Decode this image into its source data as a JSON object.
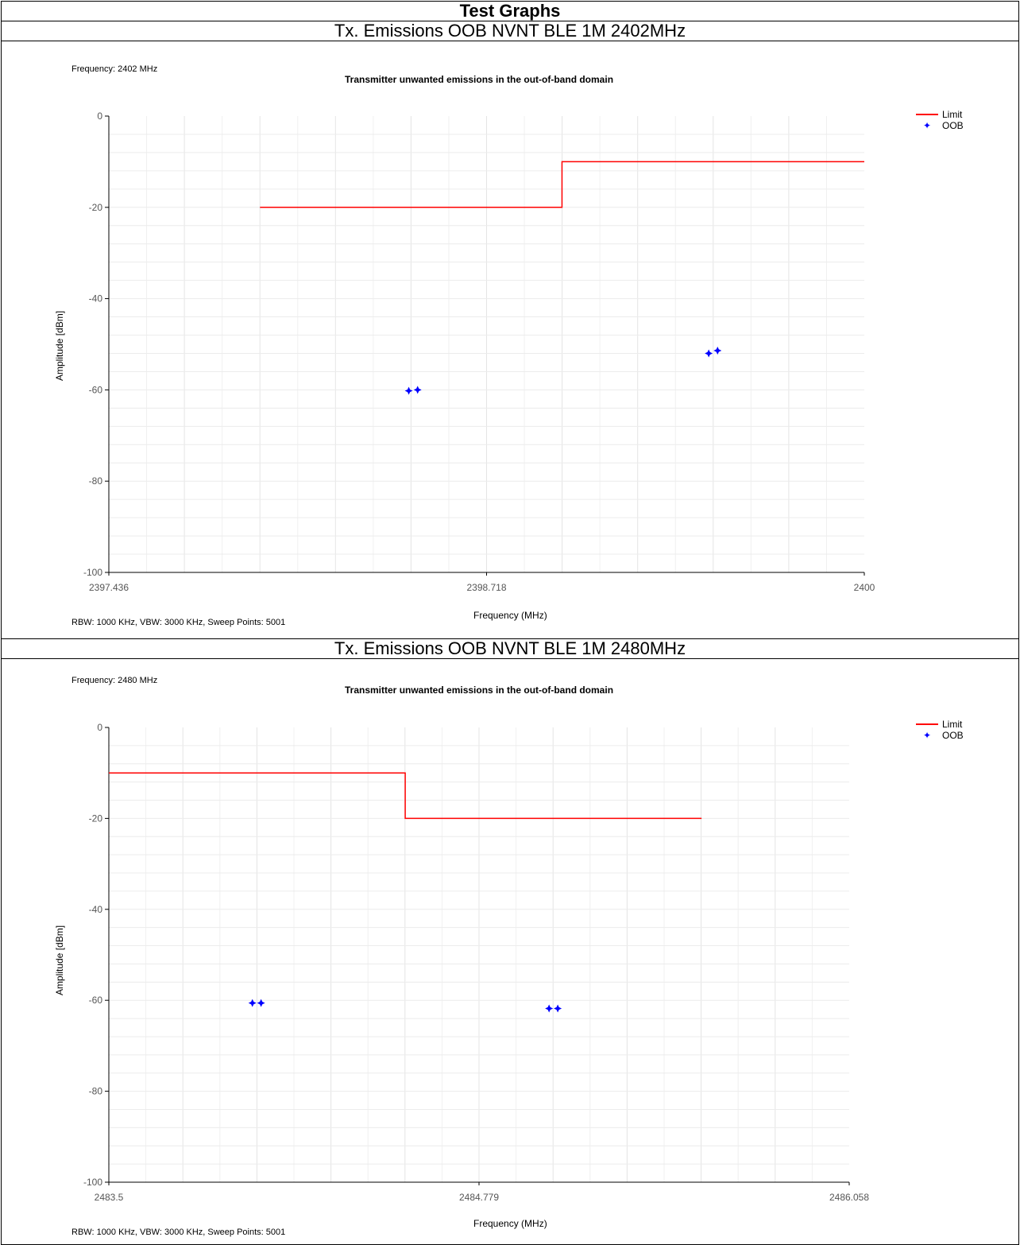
{
  "page": {
    "title": "Test Graphs"
  },
  "charts": [
    {
      "heading": "Tx. Emissions OOB NVNT BLE 1M 2402MHz",
      "frequency_note": "Frequency: 2402 MHz",
      "plot_title": "Transmitter unwanted emissions in the out-of-band domain",
      "rbw_note": "RBW: 1000 KHz,  VBW: 3000 KHz,  Sweep Points: 5001",
      "xlabel": "Frequency (MHz)",
      "ylabel": "Amplitude [dBm]",
      "legend": {
        "limit": "Limit",
        "oob": "OOB"
      }
    },
    {
      "heading": "Tx. Emissions OOB NVNT BLE 1M 2480MHz",
      "frequency_note": "Frequency: 2480 MHz",
      "plot_title": "Transmitter unwanted emissions in the out-of-band domain",
      "rbw_note": "RBW: 1000 KHz,  VBW: 3000 KHz,  Sweep Points: 5001",
      "xlabel": "Frequency (MHz)",
      "ylabel": "Amplitude [dBm]",
      "legend": {
        "limit": "Limit",
        "oob": "OOB"
      }
    }
  ],
  "chart_data": [
    {
      "type": "line",
      "title": "Transmitter unwanted emissions in the out-of-band domain",
      "xlabel": "Frequency (MHz)",
      "ylabel": "Amplitude [dBm]",
      "xlim": [
        2397.436,
        2400
      ],
      "ylim": [
        -100,
        0
      ],
      "x_ticks": [
        "2397.436",
        "2398.718",
        "2400"
      ],
      "y_ticks": [
        "0",
        "-20",
        "-40",
        "-60",
        "-80",
        "-100"
      ],
      "x_tick_values": [
        2397.436,
        2398.718,
        2400
      ],
      "y_tick_values": [
        0,
        -20,
        -40,
        -60,
        -80,
        -100
      ],
      "grid": true,
      "legend_position": "top-right",
      "series": [
        {
          "name": "Limit",
          "color": "#ff0000",
          "style": "line",
          "points": [
            [
              2397.949,
              -20
            ],
            [
              2398.974,
              -20
            ],
            [
              2398.974,
              -10
            ],
            [
              2400,
              -10
            ]
          ]
        },
        {
          "name": "OOB",
          "color": "#0000ff",
          "style": "marker",
          "points": [
            [
              2398.454,
              -60.2
            ],
            [
              2398.484,
              -60.0
            ],
            [
              2399.472,
              -52.0
            ],
            [
              2399.502,
              -51.4
            ]
          ]
        }
      ]
    },
    {
      "type": "line",
      "title": "Transmitter unwanted emissions in the out-of-band domain",
      "xlabel": "Frequency (MHz)",
      "ylabel": "Amplitude [dBm]",
      "xlim": [
        2483.5,
        2486.058
      ],
      "ylim": [
        -100,
        0
      ],
      "x_ticks": [
        "2483.5",
        "2484.779",
        "2486.058"
      ],
      "y_ticks": [
        "0",
        "-20",
        "-40",
        "-60",
        "-80",
        "-100"
      ],
      "x_tick_values": [
        2483.5,
        2484.779,
        2486.058
      ],
      "y_tick_values": [
        0,
        -20,
        -40,
        -60,
        -80,
        -100
      ],
      "grid": true,
      "legend_position": "top-right",
      "series": [
        {
          "name": "Limit",
          "color": "#ff0000",
          "style": "line",
          "points": [
            [
              2483.5,
              -10
            ],
            [
              2484.524,
              -10
            ],
            [
              2484.524,
              -20
            ],
            [
              2485.548,
              -20
            ]
          ]
        },
        {
          "name": "OOB",
          "color": "#0000ff",
          "style": "marker",
          "points": [
            [
              2483.996,
              -60.6
            ],
            [
              2484.026,
              -60.6
            ],
            [
              2485.021,
              -61.8
            ],
            [
              2485.051,
              -61.8
            ]
          ]
        }
      ]
    }
  ]
}
